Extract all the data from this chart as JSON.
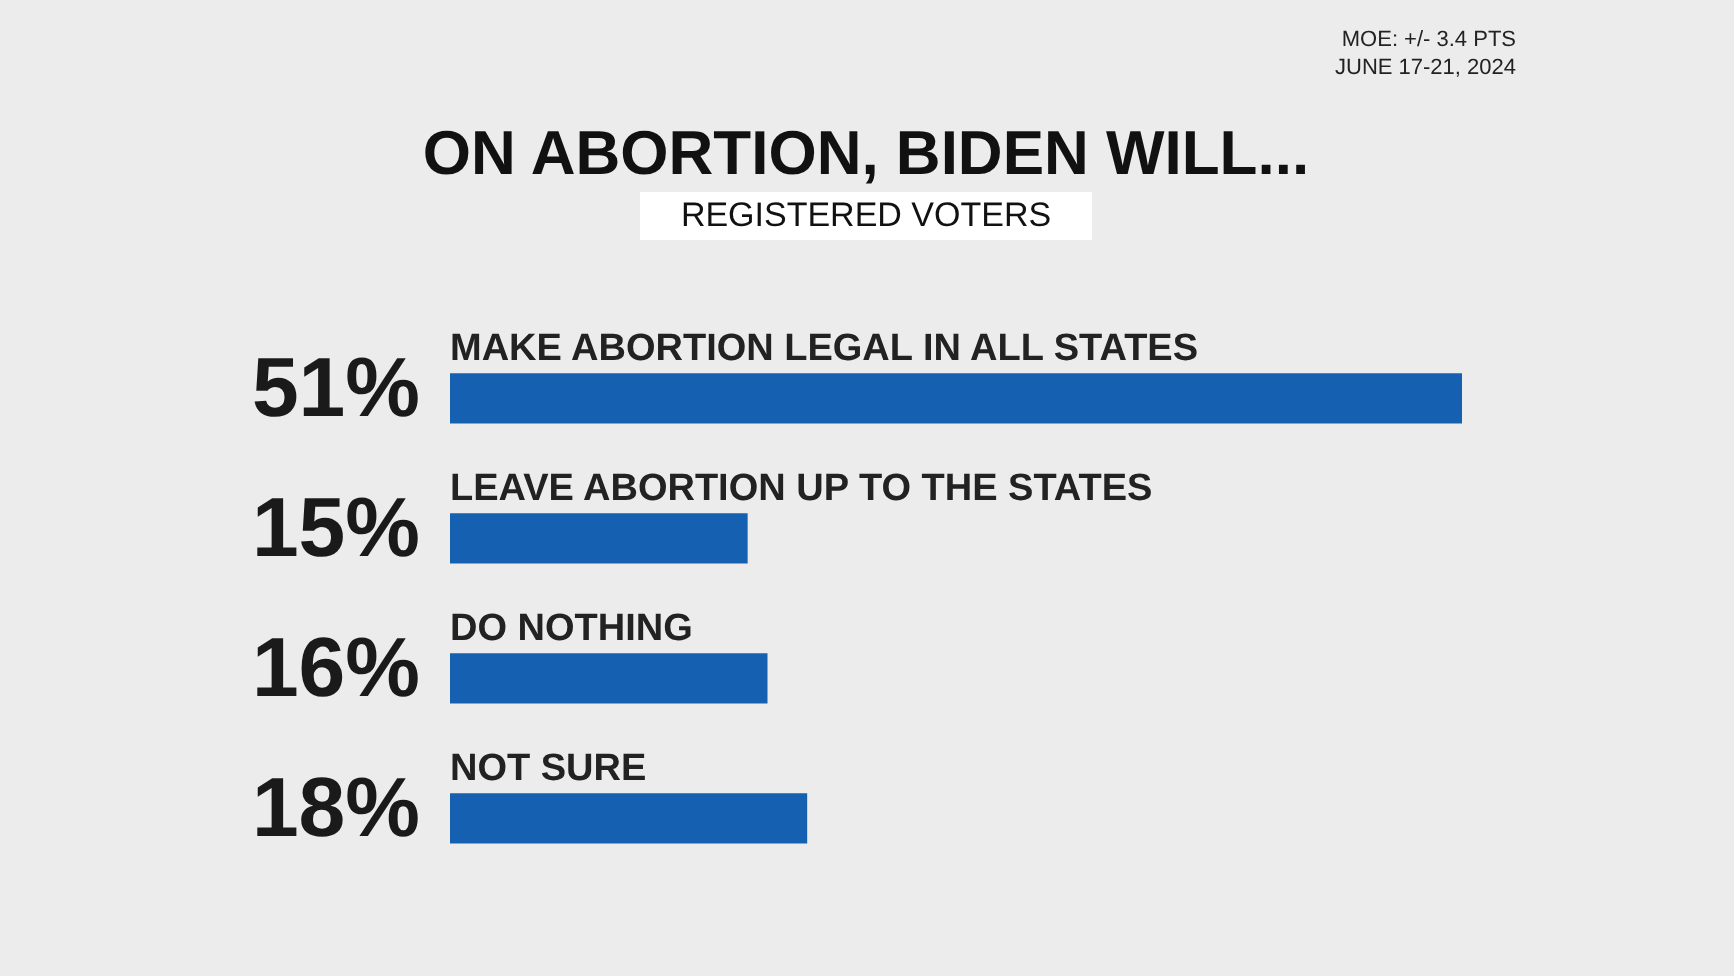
{
  "chart_data": {
    "type": "bar",
    "orientation": "horizontal",
    "title": "ON ABORTION, BIDEN WILL...",
    "subtitle": "REGISTERED VOTERS",
    "annotations": [
      "MOE: +/- 3.4 PTS",
      "JUNE 17-21, 2024"
    ],
    "categories": [
      "MAKE ABORTION LEGAL IN ALL STATES",
      "LEAVE ABORTION UP TO THE STATES",
      "DO NOTHING",
      "NOT SURE"
    ],
    "values": [
      51,
      15,
      16,
      18
    ],
    "value_labels": [
      "51%",
      "15%",
      "16%",
      "18%"
    ],
    "color": "#1660b2"
  }
}
